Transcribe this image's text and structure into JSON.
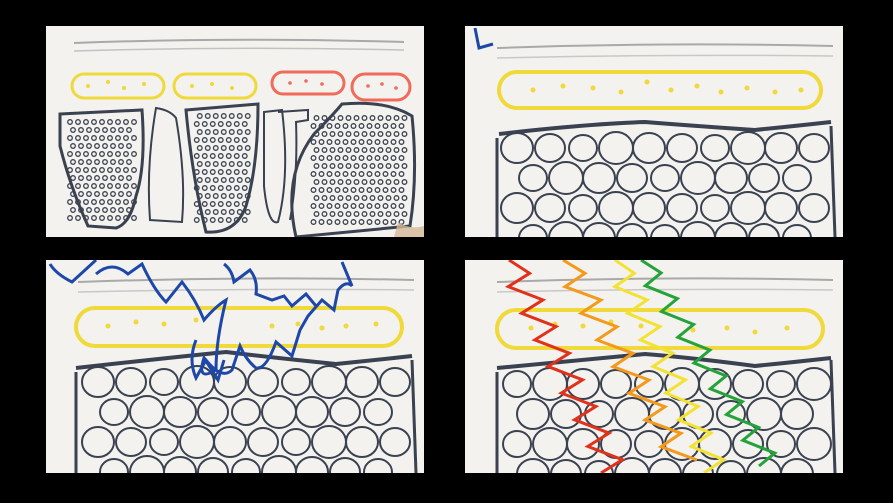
{
  "colors": {
    "background": "#000000",
    "paper": "#f3f2ee",
    "skin_line": "#a9a9a9",
    "fat_yellow": "#f0d93a",
    "inflamed_red": "#f06b5a",
    "tissue_ink": "#3a4150",
    "ray_blue": "#1d47a8",
    "ray_red": "#e0311a",
    "ray_orange": "#f39a1c",
    "ray_yellow": "#f3e233",
    "ray_green": "#25a33a"
  },
  "panels": [
    {
      "id": "p1",
      "subject": "tissue-lobules"
    },
    {
      "id": "p2",
      "subject": "cell-layer"
    },
    {
      "id": "p3",
      "subject": "cell-layer-blue-wave"
    },
    {
      "id": "p4",
      "subject": "cell-layer-color-waves"
    }
  ]
}
